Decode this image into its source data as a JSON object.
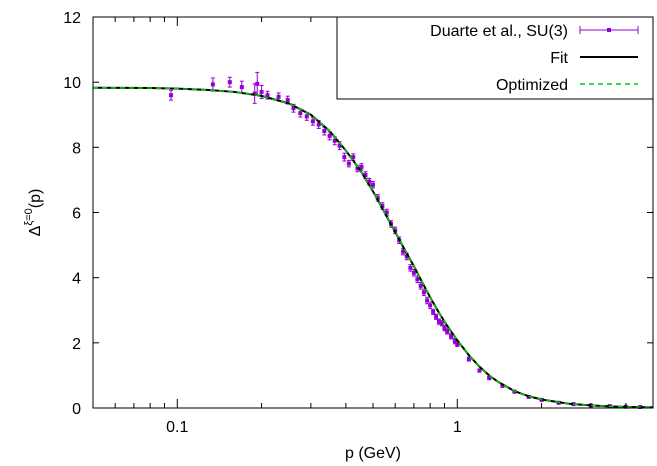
{
  "chart_data": {
    "type": "scatter",
    "xlabel": "p (GeV)",
    "ylabel": {
      "base": "Δ",
      "sup": "ξ=0",
      "arg": "(p)"
    },
    "xscale": "log",
    "xlim": [
      0.05,
      5.0
    ],
    "ylim": [
      0,
      12
    ],
    "xticks": [
      {
        "value": 0.1,
        "label": "0.1"
      },
      {
        "value": 1,
        "label": "1"
      }
    ],
    "yticks": [
      {
        "value": 0,
        "label": "0"
      },
      {
        "value": 2,
        "label": "2"
      },
      {
        "value": 4,
        "label": "4"
      },
      {
        "value": 6,
        "label": "6"
      },
      {
        "value": 8,
        "label": "8"
      },
      {
        "value": 10,
        "label": "10"
      },
      {
        "value": 12,
        "label": "12"
      }
    ],
    "grid": false,
    "legend_position": "top-right",
    "colors": {
      "data": "#9400d3",
      "fit": "#000000",
      "optimized": "#00cc00"
    },
    "series": [
      {
        "name": "Duarte et al., SU(3)",
        "kind": "points-errorbars",
        "x": [
          0.095,
          0.134,
          0.154,
          0.17,
          0.189,
          0.193,
          0.2,
          0.21,
          0.23,
          0.248,
          0.26,
          0.275,
          0.29,
          0.305,
          0.32,
          0.335,
          0.35,
          0.365,
          0.38,
          0.395,
          0.41,
          0.425,
          0.44,
          0.455,
          0.47,
          0.485,
          0.5,
          0.52,
          0.54,
          0.56,
          0.58,
          0.6,
          0.62,
          0.64,
          0.66,
          0.68,
          0.7,
          0.72,
          0.74,
          0.76,
          0.78,
          0.8,
          0.82,
          0.84,
          0.86,
          0.88,
          0.9,
          0.92,
          0.95,
          0.98,
          1.0,
          1.1,
          1.2,
          1.3,
          1.45,
          1.6,
          1.8,
          2.0,
          2.3,
          2.6,
          3.0,
          3.5,
          4.0,
          4.5
        ],
        "y": [
          9.6,
          9.93,
          10.0,
          9.85,
          9.65,
          9.95,
          9.7,
          9.6,
          9.55,
          9.45,
          9.2,
          9.05,
          8.95,
          8.8,
          8.7,
          8.5,
          8.35,
          8.2,
          8.05,
          7.7,
          7.5,
          7.7,
          7.35,
          7.4,
          7.15,
          6.95,
          6.85,
          6.45,
          6.2,
          6.0,
          5.65,
          5.45,
          5.15,
          4.8,
          4.65,
          4.3,
          4.15,
          3.95,
          3.75,
          3.55,
          3.3,
          3.15,
          2.95,
          2.8,
          2.65,
          2.6,
          2.45,
          2.35,
          2.2,
          2.05,
          1.95,
          1.5,
          1.15,
          0.92,
          0.68,
          0.5,
          0.34,
          0.25,
          0.16,
          0.12,
          0.08,
          0.06,
          0.04,
          0.03
        ],
        "yerr": [
          0.15,
          0.2,
          0.15,
          0.18,
          0.3,
          0.35,
          0.2,
          0.12,
          0.12,
          0.12,
          0.12,
          0.12,
          0.12,
          0.12,
          0.12,
          0.12,
          0.12,
          0.12,
          0.12,
          0.12,
          0.1,
          0.1,
          0.1,
          0.1,
          0.1,
          0.1,
          0.1,
          0.1,
          0.1,
          0.1,
          0.1,
          0.1,
          0.1,
          0.1,
          0.1,
          0.1,
          0.1,
          0.1,
          0.1,
          0.1,
          0.1,
          0.1,
          0.08,
          0.08,
          0.08,
          0.08,
          0.08,
          0.08,
          0.08,
          0.08,
          0.06,
          0.06,
          0.05,
          0.05,
          0.04,
          0.04,
          0.03,
          0.03,
          0.03,
          0.02,
          0.02,
          0.02,
          0.02,
          0.02
        ]
      },
      {
        "name": "Fit",
        "kind": "line-solid",
        "x": [
          0.05,
          0.08,
          0.1,
          0.13,
          0.16,
          0.2,
          0.25,
          0.3,
          0.35,
          0.4,
          0.45,
          0.5,
          0.55,
          0.6,
          0.65,
          0.7,
          0.75,
          0.8,
          0.85,
          0.9,
          0.95,
          1.0,
          1.1,
          1.2,
          1.3,
          1.4,
          1.6,
          1.8,
          2.0,
          2.5,
          3.0,
          3.5,
          4.0,
          5.0
        ],
        "y": [
          9.83,
          9.82,
          9.8,
          9.76,
          9.7,
          9.58,
          9.35,
          9.0,
          8.5,
          7.9,
          7.3,
          6.65,
          6.0,
          5.4,
          4.85,
          4.35,
          3.85,
          3.4,
          3.0,
          2.65,
          2.35,
          2.08,
          1.62,
          1.27,
          1.0,
          0.8,
          0.52,
          0.36,
          0.26,
          0.13,
          0.08,
          0.05,
          0.035,
          0.02
        ]
      },
      {
        "name": "Optimized",
        "kind": "line-dashed",
        "x": [
          0.05,
          0.08,
          0.1,
          0.13,
          0.16,
          0.2,
          0.25,
          0.3,
          0.35,
          0.4,
          0.45,
          0.5,
          0.55,
          0.6,
          0.65,
          0.7,
          0.75,
          0.8,
          0.85,
          0.9,
          0.95,
          1.0,
          1.1,
          1.2,
          1.3,
          1.4,
          1.6,
          1.8,
          2.0,
          2.5,
          3.0,
          3.5,
          4.0,
          5.0
        ],
        "y": [
          9.83,
          9.82,
          9.8,
          9.76,
          9.7,
          9.58,
          9.35,
          9.0,
          8.5,
          7.9,
          7.3,
          6.65,
          6.0,
          5.4,
          4.85,
          4.35,
          3.85,
          3.4,
          3.0,
          2.65,
          2.35,
          2.08,
          1.62,
          1.27,
          1.0,
          0.8,
          0.52,
          0.36,
          0.26,
          0.13,
          0.08,
          0.05,
          0.035,
          0.02
        ]
      }
    ]
  }
}
